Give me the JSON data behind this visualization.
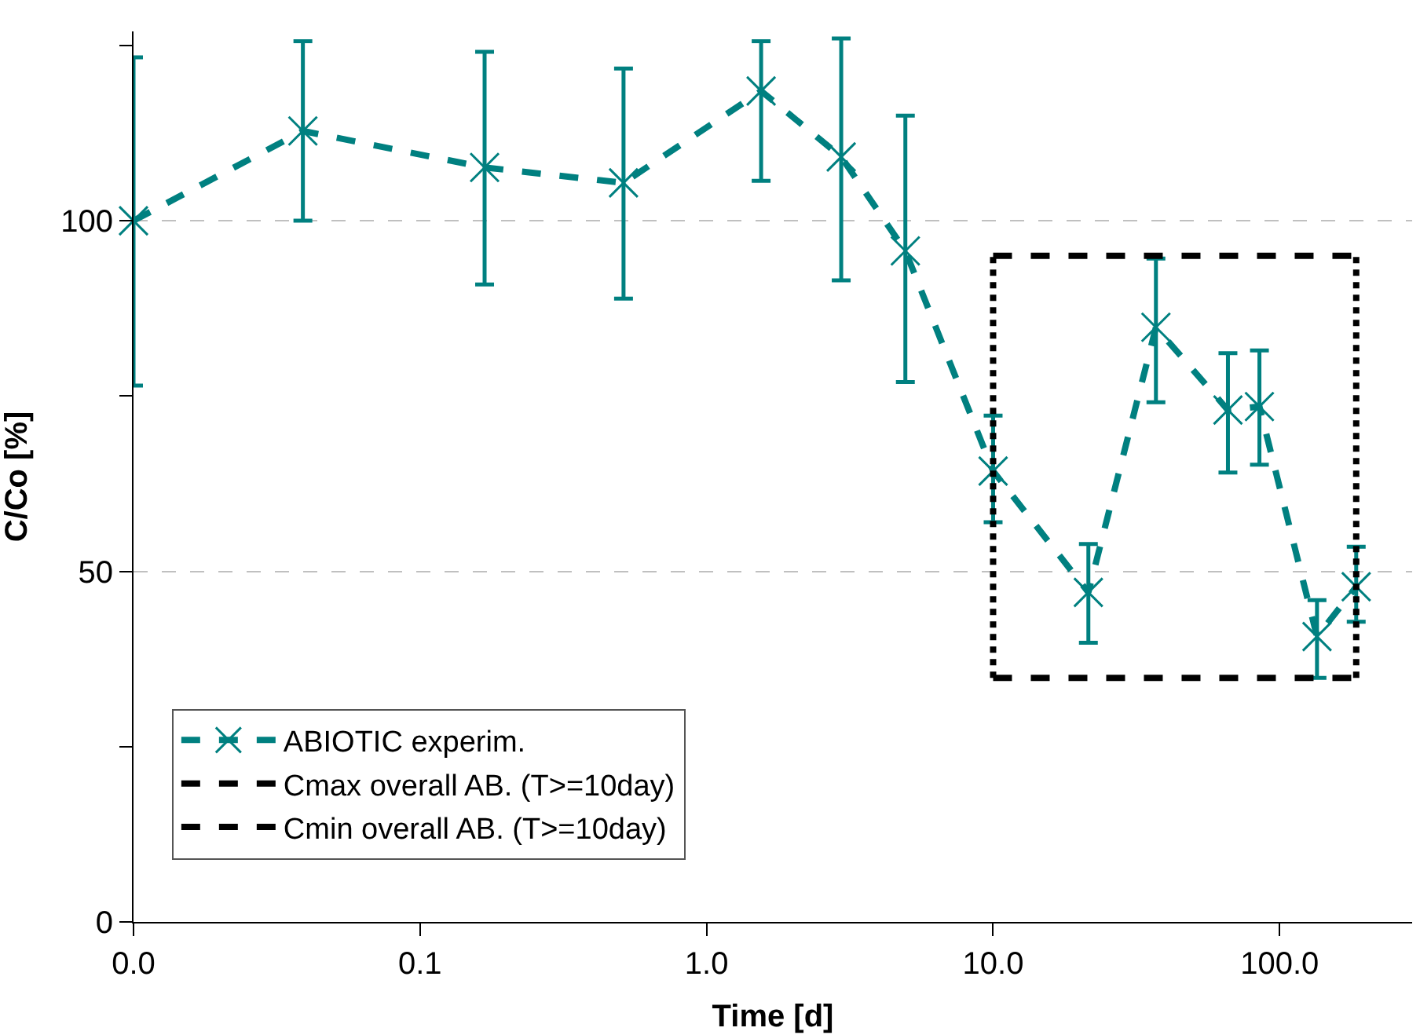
{
  "chart_data": {
    "type": "line",
    "xlabel": "Time [d]",
    "ylabel": "C/Co [%]",
    "log": "x",
    "xlim": [
      0.01,
      290
    ],
    "ylim": [
      0,
      127
    ],
    "xticks": [
      {
        "value": 0.01,
        "label": "0.0"
      },
      {
        "value": 0.1,
        "label": "0.1"
      },
      {
        "value": 1,
        "label": "1.0"
      },
      {
        "value": 10,
        "label": "10.0"
      },
      {
        "value": 100,
        "label": "100.0"
      }
    ],
    "yticks": [
      0,
      {
        "value": 25,
        "label": null
      },
      50,
      {
        "value": 75,
        "label": null
      },
      100,
      {
        "value": 125,
        "label": null
      }
    ],
    "grid": "y",
    "legend": "bottom left",
    "series": [
      {
        "name": "ABIOTIC experim.",
        "color": "#008080",
        "line_style": "dashed",
        "marker": "cross",
        "x": [
          0.01,
          0.039,
          0.168,
          0.513,
          1.55,
          2.95,
          4.94,
          10,
          21.5,
          37,
          66,
          85,
          135,
          185
        ],
        "values": [
          100,
          112.8,
          107.6,
          105.4,
          118.5,
          109.1,
          95.7,
          64.3,
          47,
          84.8,
          73,
          73.5,
          40.7,
          47.8
        ],
        "errors": [
          [
            76.5,
            123.3
          ],
          [
            100,
            125.6
          ],
          [
            90.9,
            124.1
          ],
          [
            88.9,
            121.7
          ],
          [
            105.7,
            125.6
          ],
          [
            91.5,
            126
          ],
          [
            77,
            115
          ],
          [
            57,
            72.2
          ],
          [
            39.8,
            53.9
          ],
          [
            74.1,
            94.6
          ],
          [
            64.1,
            81.1
          ],
          [
            65.2,
            81.5
          ],
          [
            34.8,
            45.9
          ],
          [
            42.8,
            53.5
          ]
        ]
      },
      {
        "name": "Cmax overall AB. (T>=10day)",
        "color": "#000000",
        "line_style": "dashed",
        "marker": "none",
        "x": [
          10,
          185
        ],
        "values": [
          95,
          95
        ]
      },
      {
        "name": "Cmin overall AB. (T>=10day)",
        "color": "#000000",
        "line_style": "dashed",
        "marker": "none",
        "x": [
          10,
          185
        ],
        "values": [
          34.8,
          34.8
        ]
      },
      {
        "color": "#000000",
        "line_style": "dotted",
        "marker": "none",
        "x": [
          10,
          10
        ],
        "values": [
          34.8,
          95
        ]
      },
      {
        "color": "#000000",
        "line_style": "dotted",
        "marker": "none",
        "x": [
          185,
          185
        ],
        "values": [
          34.8,
          95
        ]
      }
    ]
  }
}
